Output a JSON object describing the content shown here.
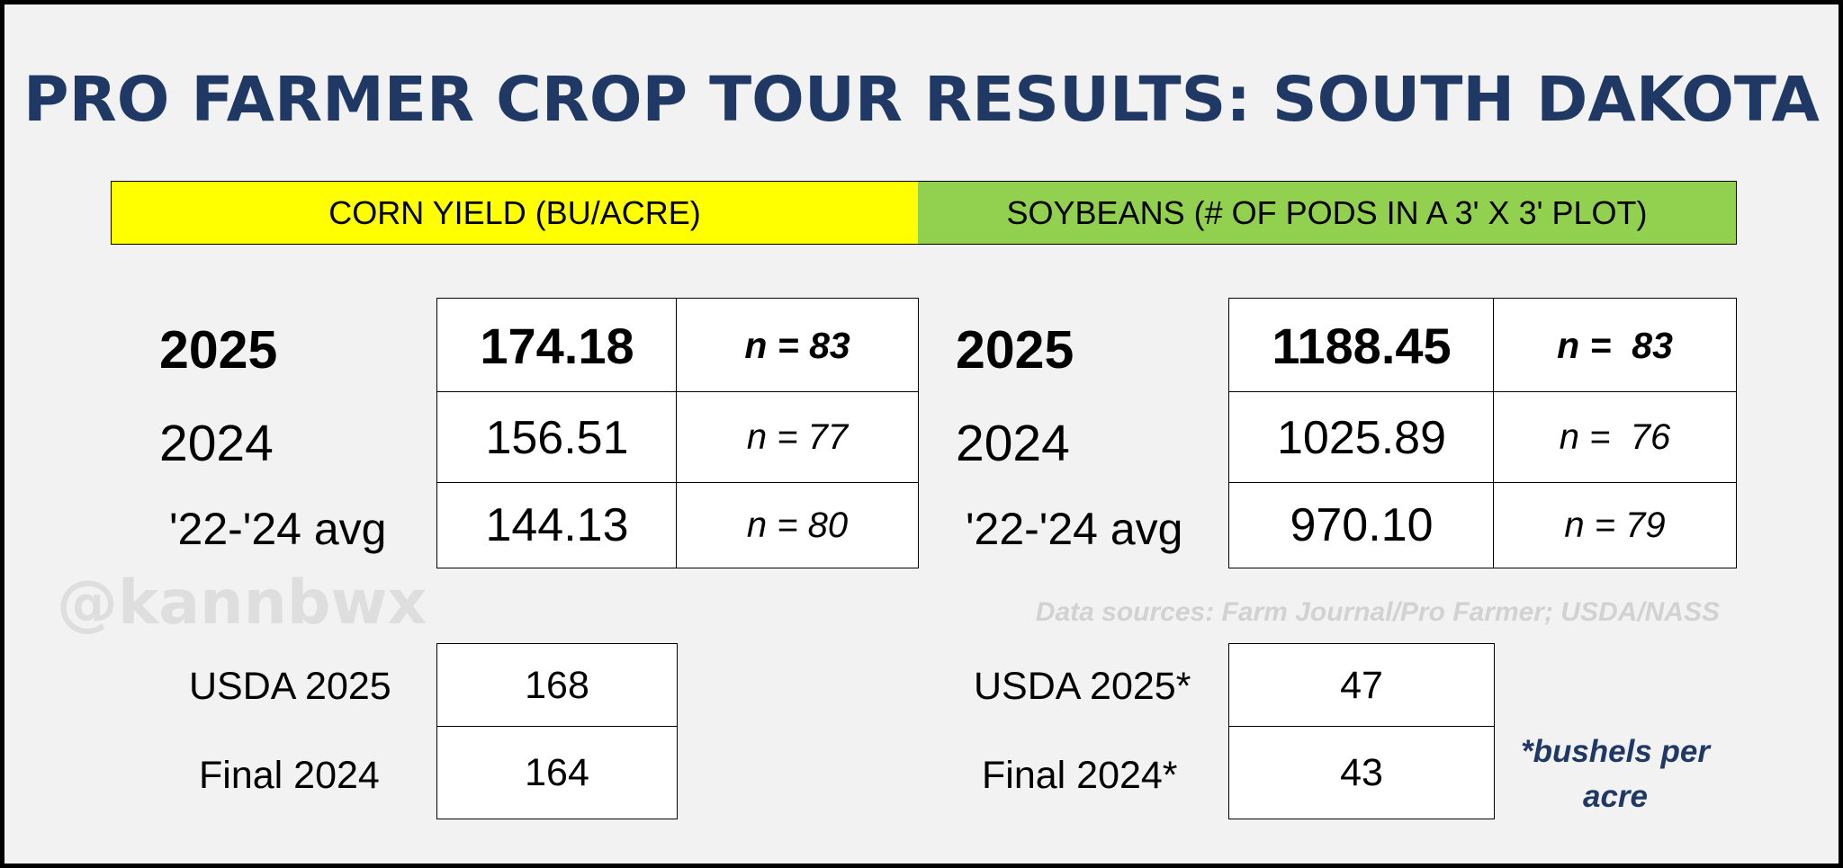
{
  "title": "PRO FARMER CROP TOUR RESULTS: SOUTH DAKOTA",
  "corn": {
    "header": "CORN YIELD (BU/ACRE)",
    "rows": [
      {
        "label": "2025",
        "value": "174.18",
        "n": "n = 83"
      },
      {
        "label": "2024",
        "value": "156.51",
        "n": "n = 77"
      },
      {
        "label": "'22-'24 avg",
        "value": "144.13",
        "n": "n = 80"
      }
    ],
    "usda": [
      {
        "label": "USDA 2025",
        "value": "168"
      },
      {
        "label": "Final 2024",
        "value": "164"
      }
    ]
  },
  "soybeans": {
    "header": "SOYBEANS (# OF PODS IN A 3' X 3' PLOT)",
    "rows": [
      {
        "label": "2025",
        "value": "1188.45",
        "n": "n =  83"
      },
      {
        "label": "2024",
        "value": "1025.89",
        "n": "n =  76"
      },
      {
        "label": "'22-'24 avg",
        "value": "970.10",
        "n": "n = 79"
      }
    ],
    "usda": [
      {
        "label": "USDA 2025*",
        "value": "47"
      },
      {
        "label": "Final 2024*",
        "value": "43"
      }
    ],
    "footnote": "*bushels per acre"
  },
  "watermark": "@kannbwx",
  "data_sources": "Data sources: Farm Journal/Pro Farmer; USDA/NASS",
  "colors": {
    "title": "#1f3864",
    "corn_header_bg": "#ffff00",
    "soy_header_bg": "#92d050",
    "footnote": "#1f3864",
    "background": "#f2f2f2"
  }
}
